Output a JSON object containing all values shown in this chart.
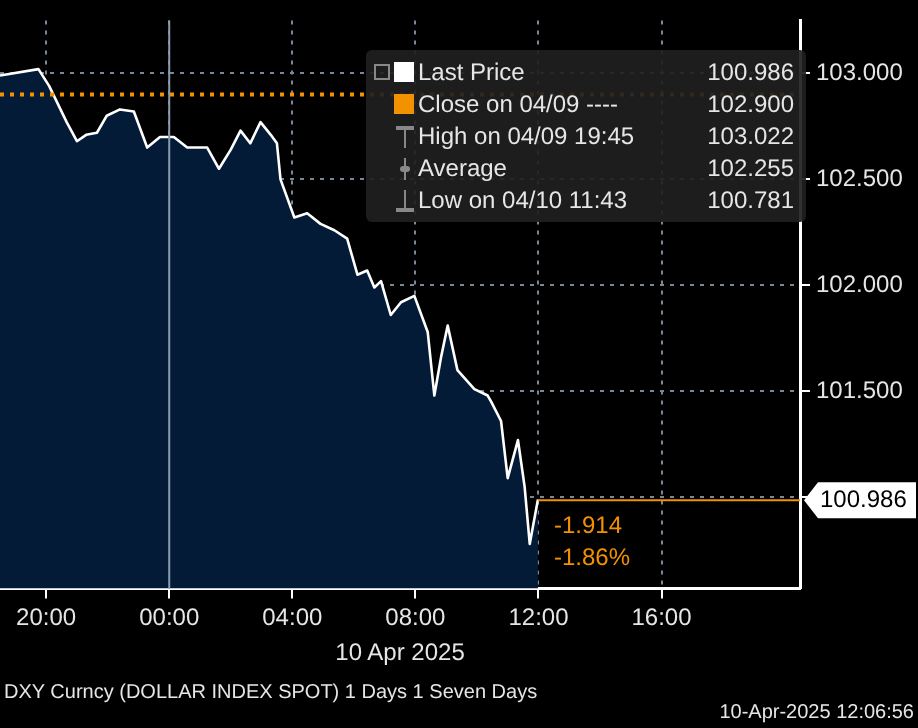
{
  "chart_data": {
    "type": "area",
    "x": [
      "2025-04-09T18:30",
      "2025-04-09T19:45",
      "2025-04-09T20:06",
      "2025-04-09T20:40",
      "2025-04-09T21:00",
      "2025-04-09T21:18",
      "2025-04-09T21:39",
      "2025-04-09T21:58",
      "2025-04-09T22:24",
      "2025-04-09T22:51",
      "2025-04-09T23:17",
      "2025-04-09T23:42",
      "2025-04-10T00:09",
      "2025-04-10T00:35",
      "2025-04-10T01:14",
      "2025-04-10T01:37",
      "2025-04-10T02:00",
      "2025-04-10T02:19",
      "2025-04-10T02:38",
      "2025-04-10T02:58",
      "2025-04-10T03:18",
      "2025-04-10T03:30",
      "2025-04-10T03:37",
      "2025-04-10T04:04",
      "2025-04-10T04:29",
      "2025-04-10T04:55",
      "2025-04-10T05:22",
      "2025-04-10T05:47",
      "2025-04-10T06:07",
      "2025-04-10T06:26",
      "2025-04-10T06:40",
      "2025-04-10T06:53",
      "2025-04-10T07:12",
      "2025-04-10T07:32",
      "2025-04-10T07:58",
      "2025-04-10T08:24",
      "2025-04-10T08:37",
      "2025-04-10T08:50",
      "2025-04-10T09:03",
      "2025-04-10T09:22",
      "2025-04-10T09:55",
      "2025-04-10T10:21",
      "2025-04-10T10:28",
      "2025-04-10T10:47",
      "2025-04-10T11:00",
      "2025-04-10T11:20",
      "2025-04-10T11:33",
      "2025-04-10T11:43",
      "2025-04-10T11:59"
    ],
    "series": [
      {
        "name": "Last Price",
        "color": "#ffffff",
        "values": [
          102.99,
          103.02,
          102.94,
          102.77,
          102.68,
          102.71,
          102.72,
          102.8,
          102.83,
          102.82,
          102.65,
          102.7,
          102.7,
          102.65,
          102.65,
          102.55,
          102.64,
          102.73,
          102.67,
          102.77,
          102.71,
          102.67,
          102.5,
          102.32,
          102.34,
          102.29,
          102.26,
          102.22,
          102.05,
          102.07,
          101.99,
          102.02,
          101.86,
          101.92,
          101.95,
          101.78,
          101.48,
          101.66,
          101.81,
          101.6,
          101.51,
          101.48,
          101.45,
          101.36,
          101.09,
          101.27,
          101.05,
          100.78,
          100.99
        ]
      }
    ],
    "xlim": [
      "2025-04-09T18:30",
      "2025-04-10T20:30"
    ],
    "xticks": [
      {
        "value": "2025-04-09T20:00",
        "label": "20:00"
      },
      {
        "value": "2025-04-10T00:00",
        "label": "00:00"
      },
      {
        "value": "2025-04-10T04:00",
        "label": "04:00"
      },
      {
        "value": "2025-04-10T08:00",
        "label": "08:00"
      },
      {
        "value": "2025-04-10T12:00",
        "label": "12:00"
      },
      {
        "value": "2025-04-10T16:00",
        "label": "16:00"
      }
    ],
    "xlabel": "10 Apr 2025",
    "ylim": [
      100.57,
      103.25
    ],
    "yticks": [
      {
        "value": 101,
        "label": null
      },
      {
        "value": 101.5,
        "label": "101.500"
      },
      {
        "value": 102,
        "label": "102.000"
      },
      {
        "value": 102.5,
        "label": "102.500"
      },
      {
        "value": 103,
        "label": "103.000"
      }
    ],
    "grid": true,
    "marker": "none",
    "legend": "top right",
    "ref_lines": [
      {
        "axis": "y",
        "value": 102.9,
        "label": "Close on 04/09 ---- 102.900",
        "color": "#f39200",
        "line_style": "dotted"
      },
      {
        "axis": "y",
        "value": 100.986,
        "label": "100.986",
        "color": "#f39200",
        "line_style": "solid"
      },
      {
        "axis": "x",
        "value": "2025-04-10T00:00",
        "color": "#8a9bb0",
        "line_style": "solid"
      }
    ],
    "annotations": [
      "100.986",
      "High on 04/09 19:45 103.022",
      "Average 102.255",
      "Low on 04/10 11:43 100.781",
      "-1.914",
      "-1.86%",
      "DXY Curncy (DOLLAR INDEX SPOT) 1 Days 1 Seven Days",
      "10-Apr-2025 12:06:56"
    ]
  }
}
